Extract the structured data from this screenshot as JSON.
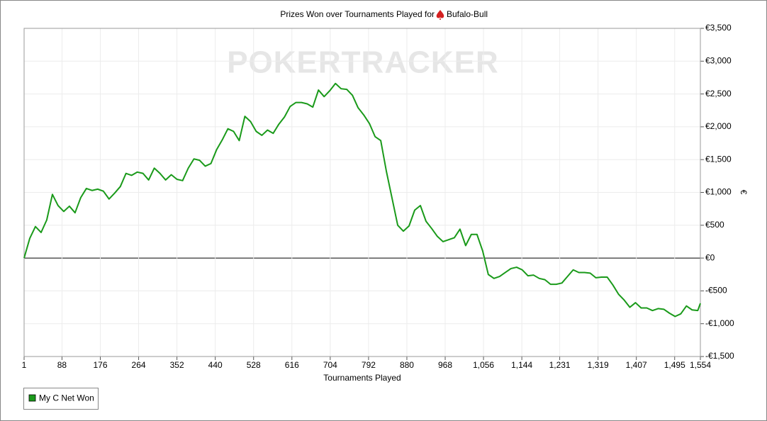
{
  "chart_data": {
    "type": "line",
    "title": "Prizes Won over Tournaments Played for",
    "player": "Bufalo-Bull",
    "watermark": "POKERTRACKER",
    "x_label": "Tournaments Played",
    "y_label": "€",
    "x": [
      1,
      14,
      27,
      40,
      53,
      66,
      79,
      92,
      105,
      118,
      131,
      144,
      157,
      170,
      183,
      196,
      209,
      222,
      235,
      248,
      261,
      274,
      287,
      300,
      313,
      326,
      339,
      352,
      365,
      378,
      391,
      404,
      417,
      430,
      443,
      456,
      469,
      482,
      495,
      508,
      521,
      534,
      547,
      560,
      573,
      586,
      599,
      612,
      625,
      638,
      651,
      664,
      677,
      690,
      703,
      716,
      729,
      742,
      755,
      768,
      781,
      794,
      807,
      820,
      833,
      846,
      859,
      872,
      885,
      898,
      911,
      924,
      937,
      950,
      963,
      976,
      989,
      1002,
      1015,
      1028,
      1041,
      1054,
      1067,
      1080,
      1093,
      1106,
      1119,
      1132,
      1145,
      1158,
      1171,
      1184,
      1197,
      1210,
      1223,
      1236,
      1249,
      1262,
      1275,
      1288,
      1301,
      1314,
      1327,
      1340,
      1353,
      1366,
      1379,
      1392,
      1405,
      1418,
      1431,
      1444,
      1457,
      1470,
      1483,
      1496,
      1509,
      1522,
      1535,
      1548,
      1554
    ],
    "series": [
      {
        "name": "My C Net Won",
        "color": "#1a9a1a",
        "values": [
          0,
          300,
          480,
          390,
          580,
          970,
          800,
          710,
          790,
          690,
          920,
          1060,
          1030,
          1050,
          1020,
          900,
          990,
          1090,
          1290,
          1260,
          1310,
          1290,
          1190,
          1370,
          1290,
          1190,
          1270,
          1200,
          1180,
          1370,
          1510,
          1490,
          1400,
          1440,
          1650,
          1800,
          1970,
          1930,
          1790,
          2160,
          2080,
          1930,
          1870,
          1950,
          1900,
          2040,
          2150,
          2310,
          2370,
          2370,
          2350,
          2300,
          2560,
          2460,
          2550,
          2660,
          2580,
          2570,
          2480,
          2290,
          2180,
          2050,
          1850,
          1790,
          1320,
          910,
          500,
          410,
          490,
          730,
          800,
          560,
          450,
          330,
          250,
          280,
          310,
          440,
          190,
          360,
          360,
          110,
          -250,
          -310,
          -280,
          -220,
          -160,
          -140,
          -180,
          -270,
          -260,
          -310,
          -330,
          -400,
          -400,
          -380,
          -280,
          -180,
          -220,
          -220,
          -230,
          -300,
          -290,
          -290,
          -410,
          -550,
          -640,
          -750,
          -680,
          -760,
          -760,
          -800,
          -770,
          -780,
          -840,
          -890,
          -850,
          -730,
          -790,
          -800,
          -690
        ]
      }
    ],
    "xlim": [
      1,
      1554
    ],
    "xticks": [
      1,
      88,
      176,
      264,
      352,
      440,
      528,
      616,
      704,
      792,
      880,
      968,
      {
        "value": 1056,
        "label": "1,056"
      },
      {
        "value": 1144,
        "label": "1,144"
      },
      {
        "value": 1231,
        "label": "1,231"
      },
      {
        "value": 1319,
        "label": "1,319"
      },
      {
        "value": 1407,
        "label": "1,407"
      },
      {
        "value": 1495,
        "label": "1,495"
      },
      {
        "value": 1554,
        "label": "1,554"
      }
    ],
    "ylim": [
      -1500,
      3500
    ],
    "yticks": [
      {
        "value": -1500,
        "label": "-€1,500"
      },
      {
        "value": -1000,
        "label": "-€1,000"
      },
      {
        "value": -500,
        "label": "-€500"
      },
      {
        "value": 0,
        "label": "€0"
      },
      {
        "value": 500,
        "label": "€500"
      },
      {
        "value": 1000,
        "label": "€1,000"
      },
      {
        "value": 1500,
        "label": "€1,500"
      },
      {
        "value": 2000,
        "label": "€2,000"
      },
      {
        "value": 2500,
        "label": "€2,500"
      },
      {
        "value": 3000,
        "label": "€3,000"
      },
      {
        "value": 3500,
        "label": "€3,500"
      }
    ],
    "grid": true,
    "legend": "bottom-left"
  }
}
